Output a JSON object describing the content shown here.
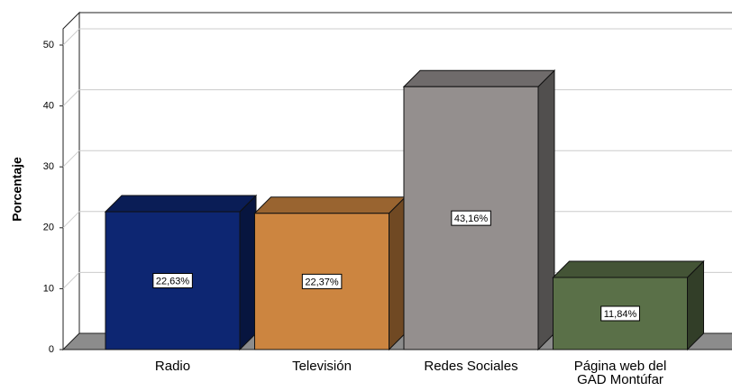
{
  "chart_data": {
    "type": "bar3d",
    "y_label": "Porcentaje",
    "categories": [
      "Radio",
      "Televisión",
      "Redes Sociales",
      "Página web del GAD Montúfar"
    ],
    "values": [
      22.63,
      22.37,
      43.16,
      11.84
    ],
    "value_labels": [
      "22,63%",
      "22,37%",
      "43,16%",
      "11,84%"
    ],
    "colors": [
      "#0d2672",
      "#cc8540",
      "#948f8e",
      "#5a7048"
    ],
    "ylim": [
      0,
      50
    ],
    "yticks": [
      0,
      10,
      20,
      30,
      40,
      50
    ],
    "grid": true
  }
}
